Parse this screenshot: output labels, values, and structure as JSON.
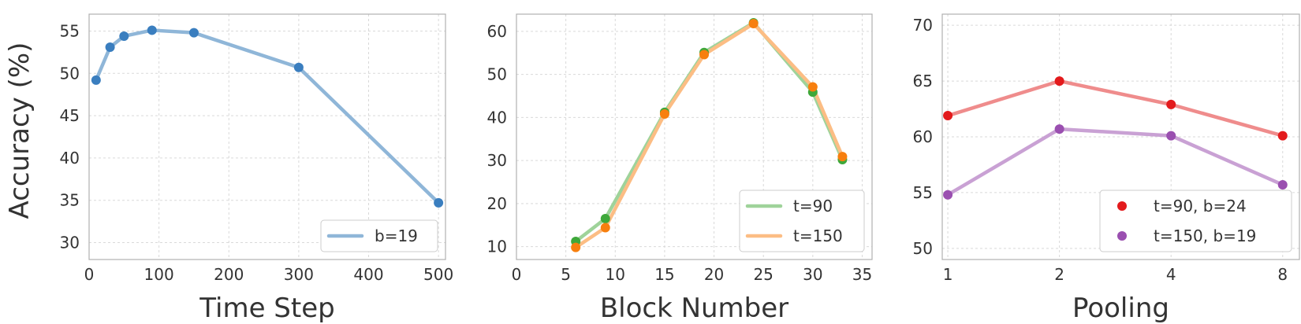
{
  "figure": {
    "shared_ylabel": "Accuracy (%)"
  },
  "chart_data": [
    {
      "type": "line",
      "xlabel": "Time Step",
      "ylabel": "Accuracy (%)",
      "xlim": [
        0,
        510
      ],
      "ylim": [
        28,
        57
      ],
      "xticks": [
        0,
        100,
        200,
        300,
        400,
        500
      ],
      "yticks": [
        30,
        35,
        40,
        45,
        50,
        55
      ],
      "grid": true,
      "legend_position": "lower-right",
      "series": [
        {
          "name": "b=19",
          "color": "#8fb6d8",
          "marker_color": "#3a7ebf",
          "x": [
            10,
            30,
            50,
            90,
            150,
            300,
            500
          ],
          "y": [
            49.2,
            53.1,
            54.4,
            55.1,
            54.8,
            50.7,
            34.7
          ]
        }
      ]
    },
    {
      "type": "line",
      "xlabel": "Block Number",
      "ylabel": "",
      "xlim": [
        0,
        36
      ],
      "ylim": [
        7,
        64
      ],
      "xticks": [
        0,
        5,
        10,
        15,
        20,
        25,
        30,
        35
      ],
      "yticks": [
        10,
        20,
        30,
        40,
        50,
        60
      ],
      "grid": true,
      "legend_position": "lower-right",
      "series": [
        {
          "name": "t=90",
          "color": "#9fd39a",
          "marker_color": "#3ea83a",
          "x": [
            6,
            9,
            15,
            19,
            24,
            30,
            33
          ],
          "y": [
            11.2,
            16.5,
            41.2,
            55.1,
            62.0,
            45.9,
            30.2
          ]
        },
        {
          "name": "t=150",
          "color": "#fcbd84",
          "marker_color": "#f77f0e",
          "x": [
            6,
            9,
            15,
            19,
            24,
            30,
            33
          ],
          "y": [
            9.8,
            14.4,
            40.8,
            54.6,
            61.8,
            47.1,
            30.9
          ]
        }
      ]
    },
    {
      "type": "line",
      "xlabel": "Pooling",
      "ylabel": "",
      "xlim": [
        -0.05,
        3.15
      ],
      "x_scale": "log2",
      "ylim": [
        49,
        71
      ],
      "xticks": [
        1,
        2,
        4,
        8
      ],
      "yticks": [
        50,
        55,
        60,
        65,
        70
      ],
      "grid": true,
      "legend_position": "lower-right",
      "series": [
        {
          "name": "t=90, b=24",
          "color": "#ef8c8c",
          "marker_color": "#e31a1c",
          "x": [
            1,
            2,
            4,
            8
          ],
          "y": [
            61.9,
            65.0,
            62.9,
            60.1
          ]
        },
        {
          "name": "t=150, b=19",
          "color": "#c9a1d4",
          "marker_color": "#9a4fb0",
          "x": [
            1,
            2,
            4,
            8
          ],
          "y": [
            54.8,
            60.7,
            60.1,
            55.7
          ]
        }
      ]
    }
  ]
}
